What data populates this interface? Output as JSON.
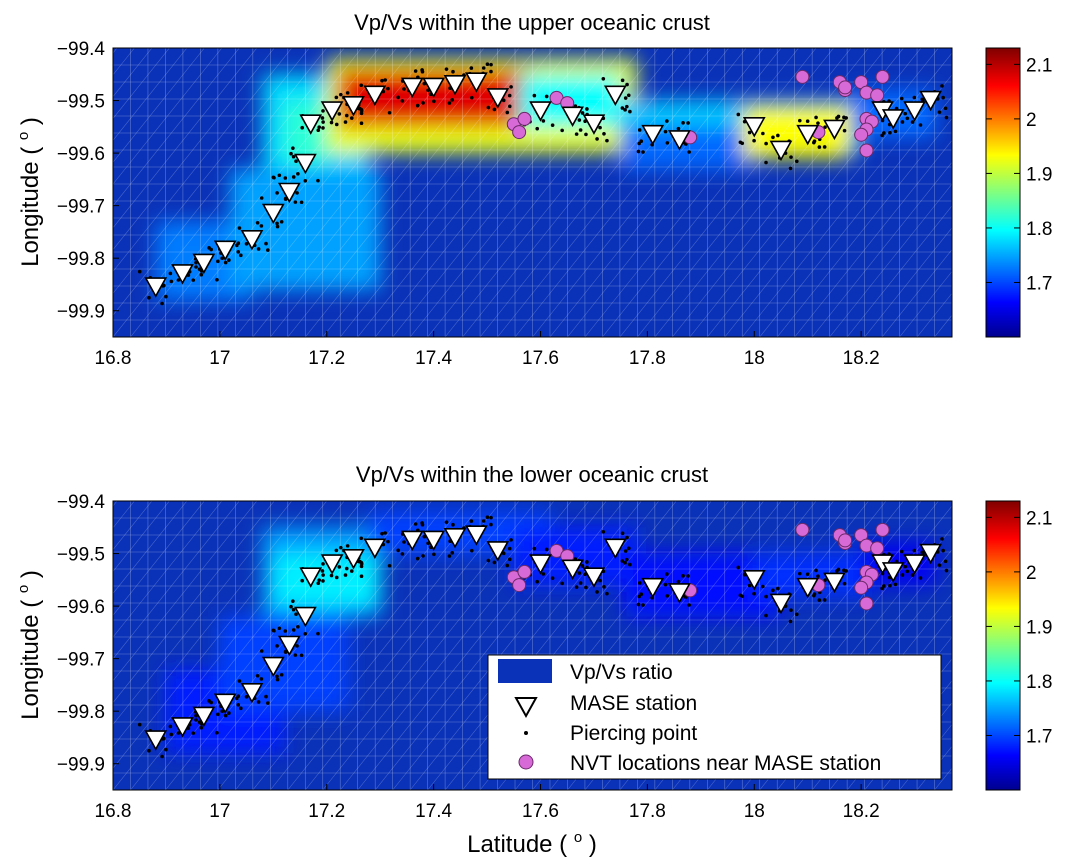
{
  "figure": {
    "xlabel_text": "Latitude (",
    "xlabel_sup": "o",
    "xlabel_close": ")"
  },
  "colors": {
    "background": "#0a32b8",
    "station_fill": "#ffffff",
    "nvt_fill": "#d86ad8",
    "nvt_stroke": "#6a2a6a",
    "point_fill": "#000000",
    "legend_patch": "#0a32b8"
  },
  "legend": {
    "placement": "lower-right of bottom panel",
    "items": [
      {
        "key": "ratio",
        "label": "Vp/Vs ratio"
      },
      {
        "key": "station",
        "label": "MASE station"
      },
      {
        "key": "point",
        "label": "Piercing point"
      },
      {
        "key": "nvt",
        "label": "NVT locations near MASE station"
      }
    ]
  },
  "chart_data": [
    {
      "type": "heatmap",
      "panel": "top",
      "title": "Vp/Vs within the upper oceanic crust",
      "xlabel": "",
      "ylabel_text": "Longitude (",
      "ylabel_sup": "o",
      "ylabel_close": ")",
      "xlim": [
        16.8,
        18.37
      ],
      "ylim": [
        -99.95,
        -99.4
      ],
      "y_reversed": true,
      "xticks": [
        16.8,
        17,
        17.2,
        17.4,
        17.6,
        17.8,
        18,
        18.2
      ],
      "xtick_labels": [
        "16.8",
        "17",
        "17.2",
        "17.4",
        "17.6",
        "17.8",
        "18",
        "18.2"
      ],
      "yticks": [
        -99.4,
        -99.5,
        -99.6,
        -99.7,
        -99.8,
        -99.9
      ],
      "ytick_labels": [
        "−99.4",
        "−99.5",
        "−99.6",
        "−99.7",
        "−99.8",
        "−99.9"
      ],
      "grid": true,
      "colorbar": {
        "min": 1.6,
        "max": 2.13,
        "ticks": [
          1.7,
          1.8,
          1.9,
          2,
          2.1
        ],
        "tick_labels": [
          "1.7",
          "1.8",
          "1.9",
          "2",
          "2.1"
        ]
      },
      "regions": [
        {
          "x": [
            16.88,
            17.06
          ],
          "y": [
            -99.88,
            -99.73
          ],
          "value": 1.73
        },
        {
          "x": [
            17.02,
            17.3
          ],
          "y": [
            -99.86,
            -99.63
          ],
          "value": 1.75
        },
        {
          "x": [
            17.08,
            17.28
          ],
          "y": [
            -99.63,
            -99.45
          ],
          "value": 1.78
        },
        {
          "x": [
            17.12,
            17.2
          ],
          "y": [
            -99.62,
            -99.5
          ],
          "value": 1.82
        },
        {
          "x": [
            17.2,
            17.78
          ],
          "y": [
            -99.6,
            -99.42
          ],
          "value": 1.92
        },
        {
          "x": [
            17.22,
            17.58
          ],
          "y": [
            -99.55,
            -99.44
          ],
          "value": 2.08
        },
        {
          "x": [
            17.56,
            17.75
          ],
          "y": [
            -99.55,
            -99.45
          ],
          "value": 1.8
        },
        {
          "x": [
            17.75,
            18.2
          ],
          "y": [
            -99.6,
            -99.5
          ],
          "value": 1.77
        },
        {
          "x": [
            17.75,
            18.0
          ],
          "y": [
            -99.63,
            -99.55
          ],
          "value": 1.72
        },
        {
          "x": [
            17.98,
            18.18
          ],
          "y": [
            -99.61,
            -99.51
          ],
          "value": 1.93
        },
        {
          "x": [
            18.18,
            18.34
          ],
          "y": [
            -99.57,
            -99.48
          ],
          "value": 1.72
        }
      ]
    },
    {
      "type": "heatmap",
      "panel": "bottom",
      "title": "Vp/Vs within the lower oceanic crust",
      "xlabel": "Latitude ( o )",
      "ylabel_text": "Longitude (",
      "ylabel_sup": "o",
      "ylabel_close": ")",
      "xlim": [
        16.8,
        18.37
      ],
      "ylim": [
        -99.95,
        -99.4
      ],
      "y_reversed": true,
      "xticks": [
        16.8,
        17,
        17.2,
        17.4,
        17.6,
        17.8,
        18,
        18.2
      ],
      "xtick_labels": [
        "16.8",
        "17",
        "17.2",
        "17.4",
        "17.6",
        "17.8",
        "18",
        "18.2"
      ],
      "yticks": [
        -99.4,
        -99.5,
        -99.6,
        -99.7,
        -99.8,
        -99.9
      ],
      "ytick_labels": [
        "−99.4",
        "−99.5",
        "−99.6",
        "−99.7",
        "−99.8",
        "−99.9"
      ],
      "grid": true,
      "colorbar": {
        "min": 1.6,
        "max": 2.13,
        "ticks": [
          1.7,
          1.8,
          1.9,
          2,
          2.1
        ],
        "tick_labels": [
          "1.7",
          "1.8",
          "1.9",
          "2",
          "2.1"
        ]
      },
      "regions": [
        {
          "x": [
            16.9,
            17.12
          ],
          "y": [
            -99.88,
            -99.72
          ],
          "value": 1.68
        },
        {
          "x": [
            17.0,
            17.24
          ],
          "y": [
            -99.8,
            -99.62
          ],
          "value": 1.7
        },
        {
          "x": [
            17.08,
            17.3
          ],
          "y": [
            -99.62,
            -99.45
          ],
          "value": 1.75
        },
        {
          "x": [
            17.1,
            17.3
          ],
          "y": [
            -99.6,
            -99.5
          ],
          "value": 1.79
        },
        {
          "x": [
            17.28,
            17.62
          ],
          "y": [
            -99.5,
            -99.42
          ],
          "value": 1.7
        },
        {
          "x": [
            17.55,
            17.78
          ],
          "y": [
            -99.56,
            -99.45
          ],
          "value": 1.68
        },
        {
          "x": [
            17.76,
            18.05
          ],
          "y": [
            -99.62,
            -99.5
          ],
          "value": 1.67
        },
        {
          "x": [
            18.0,
            18.22
          ],
          "y": [
            -99.58,
            -99.5
          ],
          "value": 1.69
        },
        {
          "x": [
            18.2,
            18.34
          ],
          "y": [
            -99.56,
            -99.48
          ],
          "value": 1.66
        }
      ]
    }
  ],
  "stations": [
    [
      16.88,
      -99.855
    ],
    [
      16.93,
      -99.83
    ],
    [
      16.97,
      -99.81
    ],
    [
      17.01,
      -99.785
    ],
    [
      17.06,
      -99.765
    ],
    [
      17.1,
      -99.715
    ],
    [
      17.13,
      -99.675
    ],
    [
      17.16,
      -99.62
    ],
    [
      17.17,
      -99.545
    ],
    [
      17.21,
      -99.52
    ],
    [
      17.25,
      -99.51
    ],
    [
      17.29,
      -99.49
    ],
    [
      17.36,
      -99.475
    ],
    [
      17.4,
      -99.475
    ],
    [
      17.44,
      -99.47
    ],
    [
      17.48,
      -99.465
    ],
    [
      17.52,
      -99.495
    ],
    [
      17.6,
      -99.52
    ],
    [
      17.66,
      -99.53
    ],
    [
      17.7,
      -99.545
    ],
    [
      17.74,
      -99.49
    ],
    [
      17.81,
      -99.565
    ],
    [
      17.86,
      -99.575
    ],
    [
      18.0,
      -99.55
    ],
    [
      18.05,
      -99.595
    ],
    [
      18.1,
      -99.565
    ],
    [
      18.15,
      -99.555
    ],
    [
      18.24,
      -99.52
    ],
    [
      18.26,
      -99.535
    ],
    [
      18.3,
      -99.52
    ],
    [
      18.33,
      -99.5
    ]
  ],
  "nvt": [
    [
      17.55,
      -99.545
    ],
    [
      17.56,
      -99.56
    ],
    [
      17.57,
      -99.535
    ],
    [
      17.63,
      -99.495
    ],
    [
      17.65,
      -99.505
    ],
    [
      17.88,
      -99.57
    ],
    [
      18.09,
      -99.455
    ],
    [
      18.12,
      -99.56
    ],
    [
      18.16,
      -99.465
    ],
    [
      18.17,
      -99.48
    ],
    [
      18.17,
      -99.475
    ],
    [
      18.2,
      -99.465
    ],
    [
      18.21,
      -99.485
    ],
    [
      18.23,
      -99.49
    ],
    [
      18.24,
      -99.455
    ],
    [
      18.21,
      -99.535
    ],
    [
      18.22,
      -99.54
    ],
    [
      18.21,
      -99.555
    ],
    [
      18.2,
      -99.565
    ],
    [
      18.21,
      -99.595
    ]
  ]
}
